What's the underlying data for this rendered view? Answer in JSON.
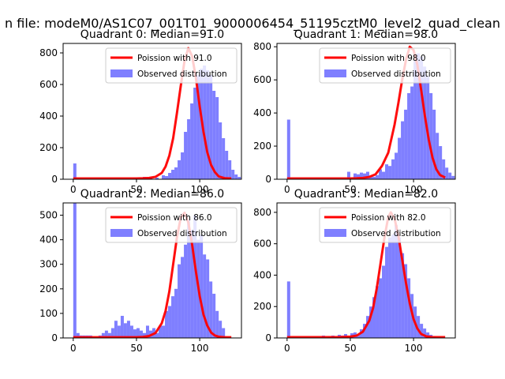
{
  "figure": {
    "suptitle": "n file: modeM0/AS1C07_001T01_9000006454_51195cztM0_level2_quad_clean"
  },
  "colors": {
    "hist": "#7f7fff",
    "line": "#ff0000",
    "axes": "#000000",
    "legend_border": "#cccccc"
  },
  "chart_data": [
    {
      "type": "bar",
      "title": "Quadrant 0: Median=91.0",
      "xlim": [
        -8,
        133
      ],
      "ylim": [
        0,
        860
      ],
      "xticks": [
        0,
        50,
        100
      ],
      "yticks": [
        0,
        200,
        400,
        600,
        800
      ],
      "bin_start": 0,
      "bin_width": 2.5,
      "hist_values": [
        100,
        0,
        0,
        0,
        0,
        0,
        0,
        0,
        0,
        0,
        0,
        0,
        0,
        0,
        0,
        0,
        0,
        0,
        0,
        10,
        10,
        0,
        15,
        10,
        15,
        0,
        10,
        0,
        25,
        20,
        40,
        60,
        75,
        120,
        170,
        300,
        380,
        480,
        580,
        660,
        700,
        720,
        690,
        660,
        560,
        520,
        360,
        260,
        180,
        120,
        60,
        30,
        15,
        0,
        0,
        0,
        0,
        0,
        0,
        0
      ],
      "curve_x": [
        0,
        10,
        20,
        30,
        40,
        50,
        55,
        60,
        65,
        70,
        73,
        76,
        79,
        82,
        85,
        88,
        91,
        94,
        97,
        100,
        103,
        106,
        109,
        112,
        115,
        120,
        125
      ],
      "curve_y": [
        5,
        5,
        5,
        5,
        5,
        5,
        6,
        8,
        15,
        40,
        80,
        150,
        260,
        420,
        590,
        750,
        830,
        780,
        640,
        460,
        300,
        170,
        90,
        45,
        18,
        6,
        5
      ],
      "legend": [
        "Poission with 91.0",
        "Observed distribution"
      ]
    },
    {
      "type": "bar",
      "title": "Quadrant 1: Median=98.0",
      "xlim": [
        -8,
        133
      ],
      "ylim": [
        0,
        820
      ],
      "xticks": [
        0,
        50,
        100
      ],
      "yticks": [
        0,
        200,
        400,
        600,
        800
      ],
      "bin_start": 0,
      "bin_width": 2.5,
      "hist_values": [
        360,
        0,
        0,
        0,
        0,
        0,
        0,
        0,
        0,
        0,
        0,
        0,
        0,
        0,
        0,
        0,
        0,
        0,
        0,
        45,
        10,
        35,
        30,
        40,
        35,
        45,
        20,
        15,
        25,
        60,
        45,
        90,
        80,
        120,
        160,
        250,
        350,
        420,
        520,
        560,
        720,
        760,
        740,
        680,
        620,
        520,
        420,
        280,
        200,
        120,
        70,
        40,
        20,
        0,
        0,
        0,
        0,
        0,
        0,
        0
      ],
      "curve_x": [
        0,
        10,
        20,
        30,
        40,
        50,
        55,
        60,
        65,
        70,
        75,
        80,
        85,
        88,
        91,
        94,
        97,
        100,
        103,
        106,
        109,
        112,
        115,
        118,
        121,
        125
      ],
      "curve_y": [
        5,
        5,
        5,
        5,
        5,
        5,
        6,
        8,
        14,
        30,
        80,
        160,
        330,
        460,
        600,
        720,
        800,
        780,
        690,
        540,
        380,
        240,
        130,
        60,
        25,
        10
      ],
      "legend": [
        "Poission with 98.0",
        "Observed distribution"
      ]
    },
    {
      "type": "bar",
      "title": "Quadrant 2: Median=86.0",
      "xlim": [
        -8,
        133
      ],
      "ylim": [
        0,
        550
      ],
      "xticks": [
        0,
        50,
        100
      ],
      "yticks": [
        0,
        100,
        200,
        300,
        400,
        500
      ],
      "bin_start": 0,
      "bin_width": 2.5,
      "hist_values": [
        550,
        20,
        10,
        10,
        10,
        10,
        0,
        0,
        10,
        20,
        30,
        20,
        40,
        70,
        50,
        90,
        60,
        70,
        50,
        35,
        40,
        30,
        20,
        50,
        30,
        40,
        20,
        50,
        50,
        110,
        130,
        170,
        200,
        300,
        330,
        380,
        480,
        440,
        500,
        400,
        420,
        340,
        320,
        230,
        180,
        110,
        70,
        40,
        0,
        0,
        0,
        0,
        0,
        0,
        0,
        0,
        0,
        0,
        0,
        0
      ],
      "curve_x": [
        0,
        10,
        20,
        30,
        40,
        50,
        55,
        60,
        65,
        70,
        73,
        76,
        79,
        82,
        85,
        88,
        91,
        94,
        97,
        100,
        103,
        106,
        109,
        112,
        115,
        120,
        125
      ],
      "curve_y": [
        3,
        3,
        3,
        3,
        3,
        3,
        4,
        8,
        20,
        60,
        110,
        190,
        300,
        410,
        490,
        510,
        470,
        380,
        270,
        170,
        95,
        50,
        22,
        10,
        5,
        3,
        3
      ],
      "legend": [
        "Poission with 86.0",
        "Observed distribution"
      ]
    },
    {
      "type": "bar",
      "title": "Quadrant 3: Median=82.0",
      "xlim": [
        -8,
        133
      ],
      "ylim": [
        0,
        860
      ],
      "xticks": [
        0,
        50,
        100
      ],
      "yticks": [
        0,
        200,
        400,
        600,
        800
      ],
      "bin_start": 0,
      "bin_width": 2.5,
      "hist_values": [
        360,
        0,
        0,
        0,
        0,
        0,
        0,
        0,
        0,
        0,
        0,
        15,
        0,
        10,
        15,
        10,
        20,
        15,
        25,
        10,
        30,
        35,
        20,
        55,
        90,
        140,
        200,
        260,
        330,
        380,
        460,
        580,
        640,
        660,
        720,
        640,
        540,
        470,
        380,
        280,
        200,
        140,
        90,
        60,
        35,
        20,
        10,
        0,
        0,
        0,
        0,
        0,
        0,
        0,
        0,
        0,
        0,
        0,
        0,
        0
      ],
      "curve_x": [
        0,
        10,
        20,
        30,
        40,
        50,
        55,
        60,
        65,
        68,
        71,
        74,
        77,
        80,
        82,
        85,
        88,
        91,
        94,
        97,
        100,
        103,
        106,
        110,
        115,
        120,
        125
      ],
      "curve_y": [
        5,
        5,
        5,
        5,
        5,
        8,
        15,
        40,
        110,
        190,
        320,
        480,
        640,
        770,
        800,
        760,
        650,
        500,
        350,
        220,
        120,
        60,
        25,
        10,
        5,
        5,
        5
      ],
      "legend": [
        "Poission with 82.0",
        "Observed distribution"
      ]
    }
  ]
}
